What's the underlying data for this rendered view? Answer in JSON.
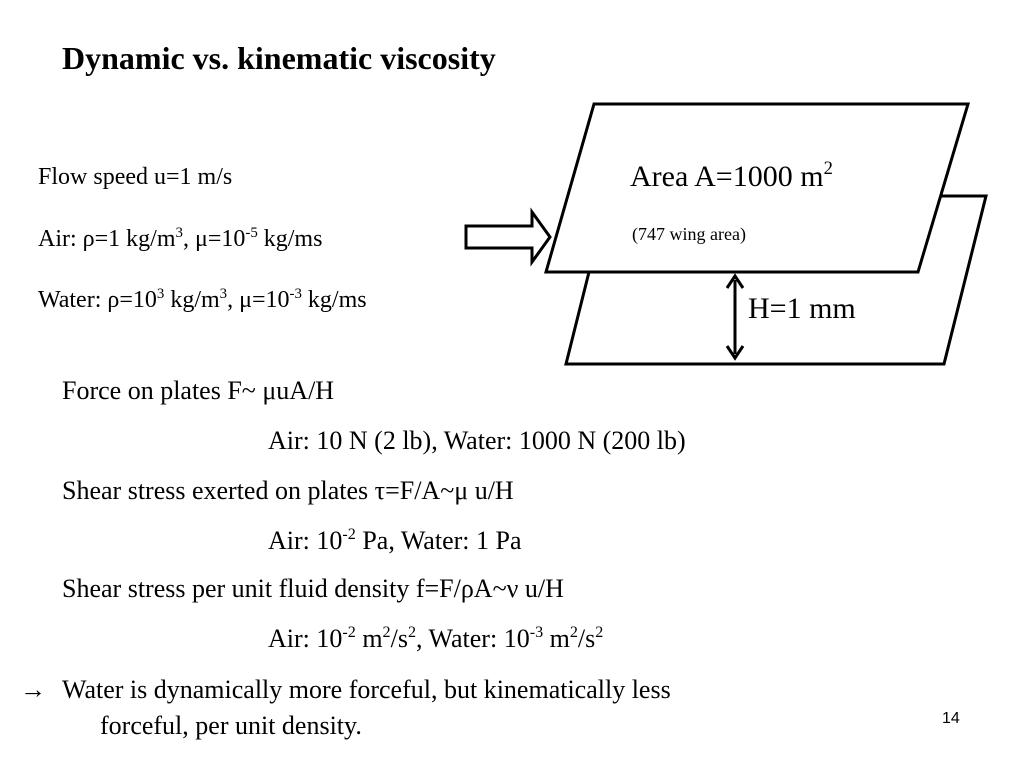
{
  "slide": {
    "title": "Dynamic vs. kinematic viscosity",
    "page_number": "14"
  },
  "params": {
    "flow_speed": "Flow speed u=1 m/s",
    "air": {
      "prefix": "Air: ρ=1 kg/m",
      "exp1": "3",
      "mid": ", μ=10",
      "exp2": "-5",
      "suffix": " kg/ms"
    },
    "water": {
      "prefix": "Water: ρ=10",
      "exp1": "3",
      "mid1": " kg/m",
      "exp2": "3",
      "mid2": ", μ=10",
      "exp3": "-3",
      "suffix": " kg/ms"
    }
  },
  "diagram": {
    "area_label": "Area A=1000 m",
    "area_exp": "2",
    "wing_label": "(747 wing area)",
    "gap_label": "H=1 mm"
  },
  "body": {
    "force_line": "Force on plates F~ μuA/H",
    "force_values": "Air: 10 N (2 lb), Water: 1000 N (200 lb)",
    "shear_line": "Shear stress exerted on plates τ=F/A~μ u/H",
    "shear_values": {
      "a": "Air: 10",
      "a_exp": "-2",
      "b": " Pa, Water: 1 Pa"
    },
    "density_line": "Shear stress per unit fluid density f=F/ρA~ν u/H",
    "density_values": {
      "a": "Air: 10",
      "a_exp": "-2",
      "b": " m",
      "b_exp": "2",
      "c": "/s",
      "c_exp": "2",
      "d": ", Water: 10",
      "d_exp": "-3",
      "e": " m",
      "e_exp": "2",
      "f": "/s",
      "f_exp": "2"
    },
    "conclusion_1": "Water is dynamically more forceful, but kinematically less",
    "conclusion_2": "forceful, per unit density.",
    "conclusion_arrow": "→"
  }
}
